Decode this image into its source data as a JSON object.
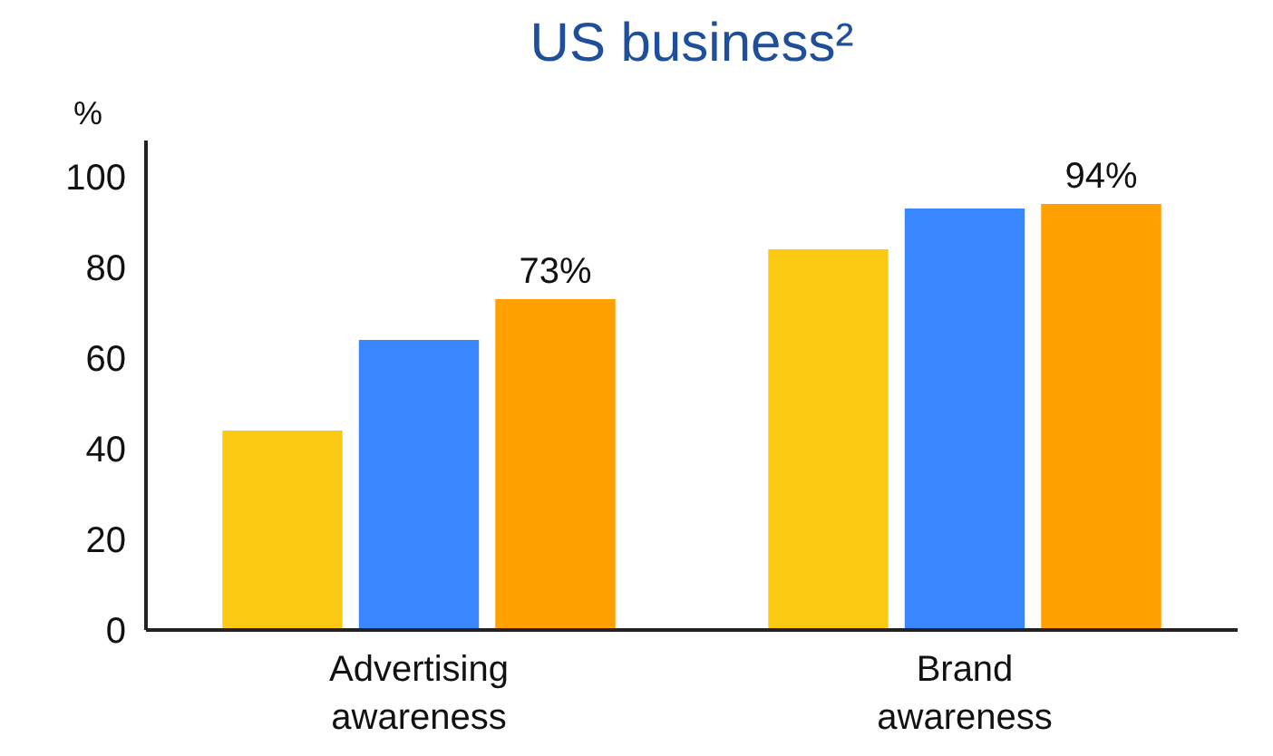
{
  "chart_data": {
    "type": "bar",
    "title": "US business²",
    "ylabel": "%",
    "categories": [
      "Advertising\nawareness",
      "Brand\nawareness"
    ],
    "series": [
      {
        "color": "#fcc912",
        "values": [
          44,
          84
        ]
      },
      {
        "color": "#3a86ff",
        "values": [
          64,
          93
        ]
      },
      {
        "color": "#ff9f00",
        "values": [
          73,
          94
        ],
        "value_labels": [
          "73%",
          "94%"
        ]
      }
    ],
    "ylim": [
      0,
      108
    ],
    "yticks": [
      0,
      20,
      40,
      60,
      80,
      100
    ],
    "grid": false
  }
}
